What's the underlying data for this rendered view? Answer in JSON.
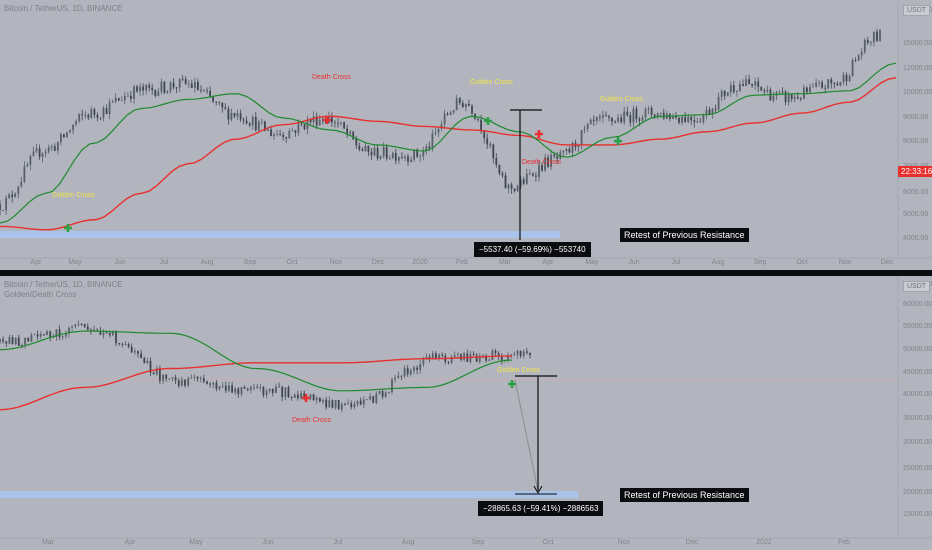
{
  "colors": {
    "background": "#b2b5be",
    "ma_fast": "#1e8a2e",
    "ma_slow": "#e8302f",
    "candle_up": "#58606a",
    "candle_down": "#3f4650",
    "support_zone": "#a9c4f0",
    "cross_golden": "#2aa146",
    "cross_death": "#e8302f",
    "label_golden": "#f3e54a",
    "label_death": "#e8302f"
  },
  "top_pane": {
    "legend_line1": "Bitcoin / TetherUS, 1D, BINANCE",
    "currency_tag": "USDT",
    "price_tag": "22:33:16",
    "measure_label": "−5537.40 (−59.69%) −553740",
    "annotation": "Retest of Previous Resistance",
    "cross_labels": [
      "Golden Cross",
      "Death Cross",
      "Golden Cross",
      "Death Cross",
      "Golden Cross"
    ],
    "price_axis": [
      "18000.00",
      "15000.00",
      "12000.00",
      "10000.00",
      "9000.00",
      "8000.00",
      "7000.00",
      "6000.00",
      "5000.00",
      "4000.00"
    ],
    "time_axis": [
      "Apr",
      "May",
      "Jun",
      "Jul",
      "Aug",
      "Sep",
      "Oct",
      "Nov",
      "Dec",
      "2020",
      "Feb",
      "Mar",
      "Apr",
      "May",
      "Jun",
      "Jul",
      "Aug",
      "Sep",
      "Oct",
      "Nov",
      "Dec"
    ]
  },
  "bottom_pane": {
    "legend_line1": "Bitcoin / TetherUS, 1D, BINANCE",
    "legend_line2": "Golden/Death Cross",
    "currency_tag": "USDT",
    "measure_label": "−28865.63 (−59.41%) −2886563",
    "annotation": "Retest of Previous Resistance",
    "cross_labels": [
      "Death Cross",
      "Golden Cross"
    ],
    "price_axis": [
      "65000.00",
      "60000.00",
      "55000.00",
      "50000.00",
      "45000.00",
      "40000.00",
      "35000.00",
      "30000.00",
      "25000.00",
      "20000.00",
      "15000.00"
    ],
    "time_axis": [
      "Mar",
      "Apr",
      "May",
      "Jun",
      "Jul",
      "Aug",
      "Sep",
      "Oct",
      "Nov",
      "Dec",
      "2022",
      "Feb"
    ]
  },
  "chart_data": [
    {
      "type": "line",
      "title": "Bitcoin / TetherUS, 1D, BINANCE",
      "x": [
        "Apr 2019",
        "May 2019",
        "Jun 2019",
        "Jul 2019",
        "Aug 2019",
        "Sep 2019",
        "Oct 2019",
        "Nov 2019",
        "Dec 2019",
        "Jan 2020",
        "Feb 2020",
        "Mar 2020",
        "Apr 2020",
        "May 2020",
        "Jun 2020",
        "Jul 2020",
        "Aug 2020",
        "Sep 2020",
        "Oct 2020",
        "Nov 2020"
      ],
      "series": [
        {
          "name": "price",
          "values": [
            5200,
            7500,
            9500,
            11000,
            11500,
            9500,
            8300,
            9200,
            7300,
            7200,
            10200,
            5800,
            7000,
            9000,
            9500,
            9200,
            11500,
            10500,
            11500,
            15800
          ]
        },
        {
          "name": "ma_50",
          "values": [
            4600,
            5600,
            7800,
            9800,
            10400,
            10800,
            9200,
            8500,
            7700,
            7400,
            9300,
            8400,
            7100,
            8100,
            9300,
            9400,
            10700,
            10800,
            11000,
            13200
          ]
        },
        {
          "name": "ma_200",
          "values": [
            4500,
            4400,
            4700,
            5600,
            6800,
            8000,
            8800,
            9300,
            9000,
            8700,
            8500,
            8200,
            7700,
            7700,
            8000,
            8400,
            8900,
            9500,
            10200,
            12000
          ]
        }
      ],
      "y_scale": "log",
      "ylim": [
        3800,
        19000
      ]
    },
    {
      "type": "line",
      "title": "Bitcoin / TetherUS, 1D, BINANCE",
      "x": [
        "Mar 2021",
        "Apr 2021",
        "May 2021",
        "Jun 2021",
        "Jul 2021",
        "Aug 2021",
        "Sep 2021"
      ],
      "series": [
        {
          "name": "price",
          "values": [
            52000,
            58000,
            38000,
            35000,
            31000,
            46000,
            47000
          ]
        },
        {
          "name": "ma_50",
          "values": [
            49000,
            57000,
            56000,
            42000,
            35000,
            36000,
            45000
          ]
        },
        {
          "name": "ma_200",
          "values": [
            30000,
            36000,
            42000,
            44000,
            44000,
            45500,
            46500
          ]
        }
      ],
      "y_scale": "log",
      "ylim": [
        13000,
        70000
      ]
    }
  ]
}
